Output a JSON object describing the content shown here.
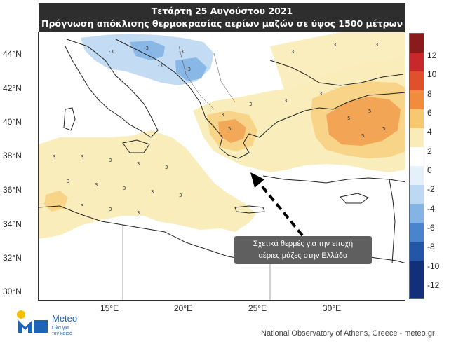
{
  "title": {
    "line1": "Τετάρτη 25 Αυγούστου 2021",
    "line2": "Πρόγνωση απόκλισης θερμοκρασίας αερίων μαζών σε ύψος 1500 μέτρων"
  },
  "map": {
    "lat_labels": [
      "44°N",
      "42°N",
      "40°N",
      "38°N",
      "36°N",
      "34°N",
      "32°N",
      "30°N"
    ],
    "lon_labels": [
      "15°E",
      "20°E",
      "25°E",
      "30°E"
    ],
    "colorbar": {
      "labels": [
        "12",
        "10",
        "8",
        "6",
        "4",
        "2",
        "0",
        "-2",
        "-4",
        "-6",
        "-8",
        "-10",
        "-12"
      ],
      "colors": [
        "#8b1a1a",
        "#c8282a",
        "#e0502a",
        "#f08c3c",
        "#f8c870",
        "#faecb8",
        "#ffffff",
        "#e6f0fa",
        "#bcd8f2",
        "#84b4e4",
        "#4a84cc",
        "#2456a8",
        "#12307a"
      ]
    },
    "colors": {
      "land_warm_light": "#faecb8",
      "land_warm": "#f8d488",
      "hot": "#f0a050",
      "cool": "#bcd8f2",
      "cooler": "#84b4e4"
    },
    "point_labels": {
      "warm": "3",
      "hot": "5",
      "cool": "-3"
    }
  },
  "annotation": {
    "line1": "Σχετικά θερμές για την εποχή",
    "line2": "αέριες μάζες στην Ελλάδα"
  },
  "logo": {
    "name": "Meteo",
    "tagline_1": "Όλα για",
    "tagline_2": "τον καιρό"
  },
  "credit": "National Observatory of Athens, Greece - meteo.gr"
}
